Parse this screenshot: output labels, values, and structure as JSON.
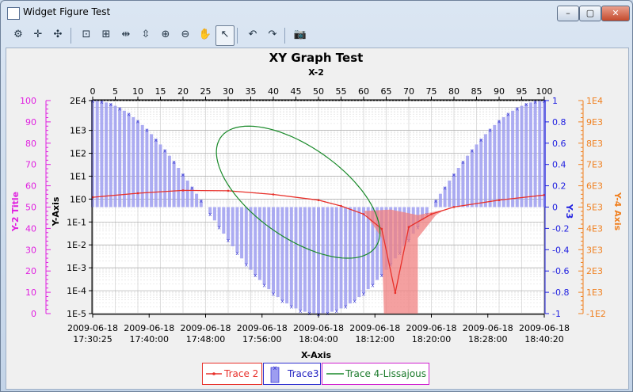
{
  "window": {
    "title": "Widget Figure Test"
  },
  "toolbar": {
    "buttons": [
      {
        "name": "settings-tool-button",
        "glyph": "⚙"
      },
      {
        "name": "add-marker-button",
        "glyph": "✛"
      },
      {
        "name": "remove-marker-button",
        "glyph": "✣"
      },
      {
        "name": "autoscale-button",
        "glyph": "⊡"
      },
      {
        "name": "zoom-box-button",
        "glyph": "⊞"
      },
      {
        "name": "zoom-horizontal-button",
        "glyph": "⇹"
      },
      {
        "name": "zoom-vertical-button",
        "glyph": "⇳"
      },
      {
        "name": "zoom-in-button",
        "glyph": "⊕"
      },
      {
        "name": "zoom-out-button",
        "glyph": "⊖"
      },
      {
        "name": "pan-hand-button",
        "glyph": "✋"
      },
      {
        "name": "select-cursor-button",
        "glyph": "↖"
      },
      {
        "name": "undo-button",
        "glyph": "↶"
      },
      {
        "name": "redo-button",
        "glyph": "↷"
      },
      {
        "name": "camera-snapshot-button",
        "glyph": "📷"
      }
    ]
  },
  "chart_data": {
    "type": "line",
    "title": "XY Graph Test",
    "xlabel": "X-Axis",
    "x2label": "X-2",
    "ylabel": "Y-Axis",
    "y2label": "Y-2 Title",
    "y3label": "Y-3",
    "y4label": "Y-4 Axis",
    "grid": true,
    "x_ticks": [
      [
        "2009-06-18",
        "17:30:25"
      ],
      [
        "2009-06-18",
        "17:40:00"
      ],
      [
        "2009-06-18",
        "17:48:00"
      ],
      [
        "2009-06-18",
        "17:56:00"
      ],
      [
        "2009-06-18",
        "18:04:00"
      ],
      [
        "2009-06-18",
        "18:12:00"
      ],
      [
        "2009-06-18",
        "18:20:00"
      ],
      [
        "2009-06-18",
        "18:28:00"
      ],
      [
        "2009-06-18",
        "18:40:20"
      ]
    ],
    "x2_ticks": [
      "0",
      "5",
      "10",
      "15",
      "20",
      "25",
      "30",
      "35",
      "40",
      "45",
      "50",
      "55",
      "60",
      "65",
      "70",
      "75",
      "80",
      "85",
      "90",
      "95",
      "100"
    ],
    "y_ticks": [
      "2E4",
      "1E3",
      "1E2",
      "1E1",
      "1E0",
      "1E-1",
      "1E-2",
      "1E-3",
      "1E-4",
      "1E-5"
    ],
    "y2_ticks": [
      "100",
      "90",
      "80",
      "70",
      "60",
      "50",
      "40",
      "30",
      "20",
      "10",
      "0"
    ],
    "y3_ticks": [
      "1",
      "0.8",
      "0.6",
      "0.4",
      "0.2",
      "0",
      "-0.2",
      "-0.4",
      "-0.6",
      "-0.8",
      "-1"
    ],
    "y4_ticks": [
      "1E4",
      "9E3",
      "8E3",
      "7E3",
      "6E3",
      "5E3",
      "4E3",
      "3E3",
      "2E3",
      "1E3",
      "-1E2"
    ],
    "series": [
      {
        "name": "Trace 2",
        "color": "#e8302a",
        "x": [
          0,
          10,
          20,
          30,
          40,
          50,
          55,
          60,
          64,
          67,
          70,
          75,
          80,
          90,
          100
        ],
        "y": [
          1.2,
          1.8,
          2.4,
          2.3,
          1.6,
          0.9,
          0.5,
          0.22,
          0.05,
          8e-05,
          0.06,
          0.22,
          0.45,
          0.9,
          1.5
        ]
      },
      {
        "name": "Trace3",
        "color": "#3030d0",
        "x2": [
          0,
          5,
          10,
          15,
          20,
          25,
          30,
          35,
          40,
          45,
          50,
          55,
          60,
          65,
          70,
          75,
          80,
          85,
          90,
          95,
          100
        ],
        "y3": [
          1,
          0.95,
          0.81,
          0.59,
          0.31,
          0,
          -0.31,
          -0.59,
          -0.81,
          -0.95,
          -1,
          -0.95,
          -0.81,
          -0.59,
          -0.31,
          0,
          0.31,
          0.59,
          0.81,
          0.95,
          1
        ]
      },
      {
        "name": "Trace 4-Lissajous",
        "color": "#1a8a2a",
        "shape": "ellipse"
      }
    ],
    "legend": [
      "Trace 2",
      "Trace3",
      "Trace 4-Lissajous"
    ],
    "colors": {
      "y2": "#e020e0",
      "y3": "#2020e0",
      "y4": "#f08020",
      "trace2": "#e8302a",
      "trace3": "#3030d0",
      "trace4": "#1a8a2a"
    }
  }
}
